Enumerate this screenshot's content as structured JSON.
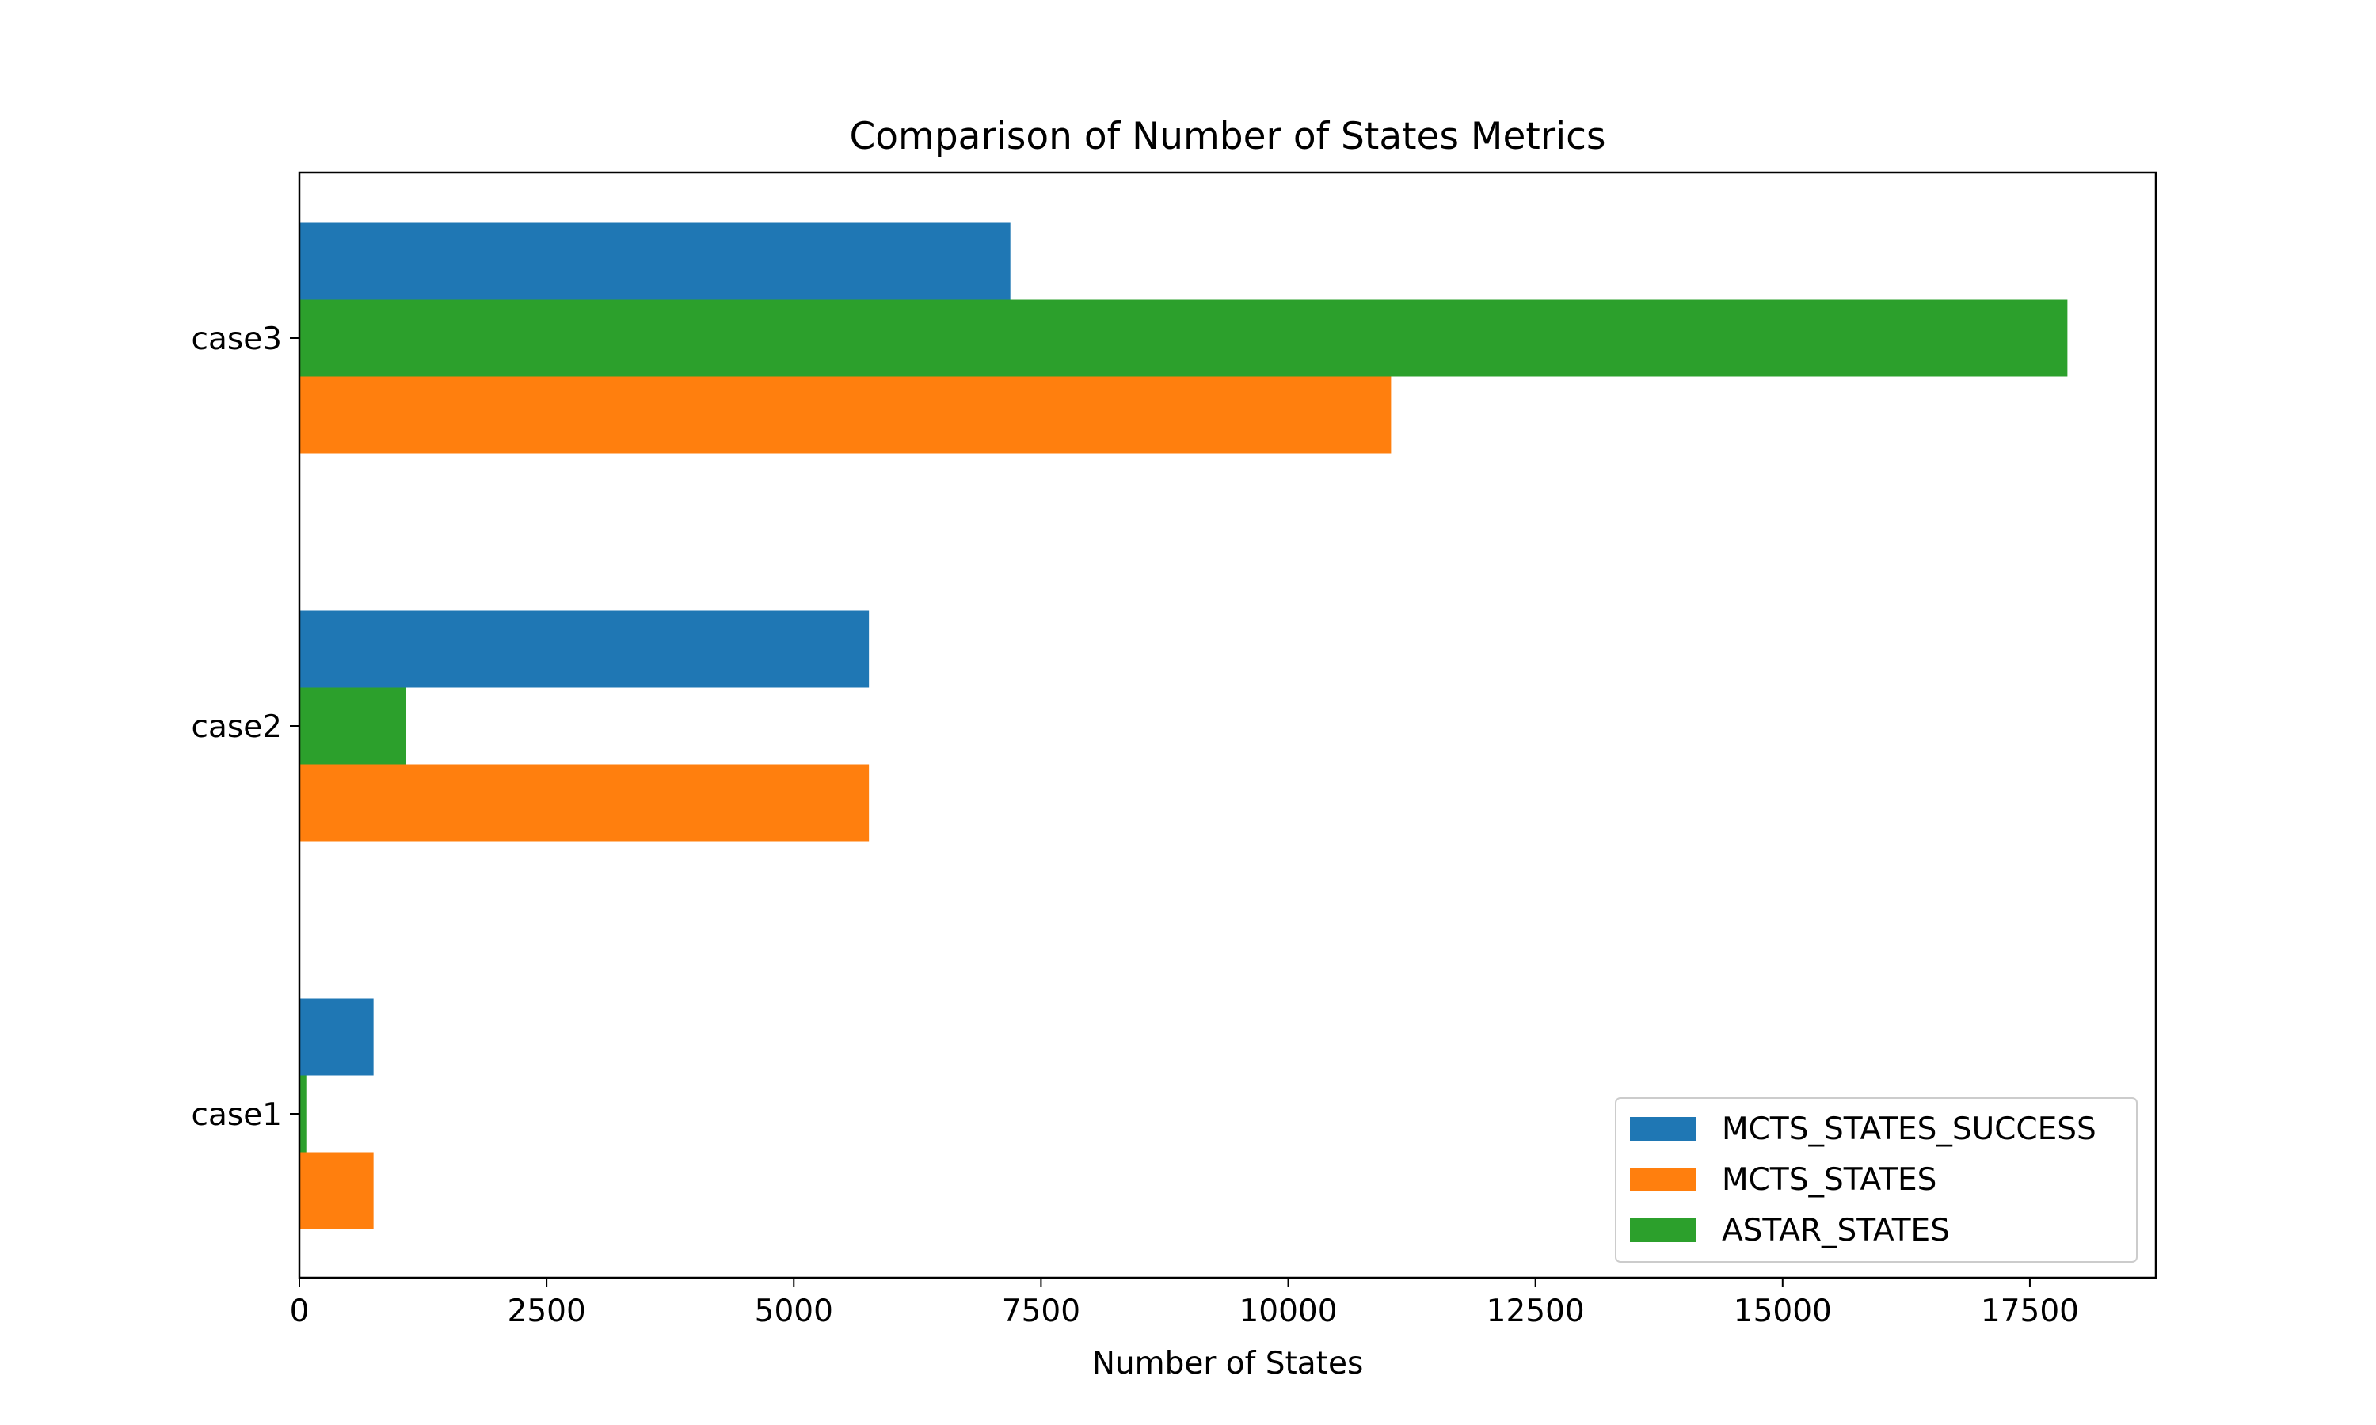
{
  "chart_data": {
    "type": "bar",
    "orientation": "horizontal",
    "title": "Comparison of Number of States Metrics",
    "xlabel": "Number of States",
    "ylabel": "",
    "categories": [
      "case1",
      "case2",
      "case3"
    ],
    "series": [
      {
        "name": "MCTS_STATES_SUCCESS",
        "color": "#1f77b4",
        "values": [
          750,
          5760,
          7190
        ]
      },
      {
        "name": "ASTAR_STATES",
        "color": "#2ca02c",
        "values": [
          70,
          1080,
          17880
        ]
      },
      {
        "name": "MCTS_STATES",
        "color": "#ff7f0e",
        "values": [
          750,
          5760,
          11040
        ]
      }
    ],
    "legend_order": [
      "MCTS_STATES_SUCCESS",
      "MCTS_STATES",
      "ASTAR_STATES"
    ],
    "xlim": [
      0,
      18774
    ],
    "xticks": [
      0,
      2500,
      5000,
      7500,
      10000,
      12500,
      15000,
      17500
    ],
    "xtick_labels": [
      "0",
      "2500",
      "5000",
      "7500",
      "10000",
      "12500",
      "15000",
      "17500"
    ],
    "grid": false,
    "legend_position": "lower-right"
  }
}
